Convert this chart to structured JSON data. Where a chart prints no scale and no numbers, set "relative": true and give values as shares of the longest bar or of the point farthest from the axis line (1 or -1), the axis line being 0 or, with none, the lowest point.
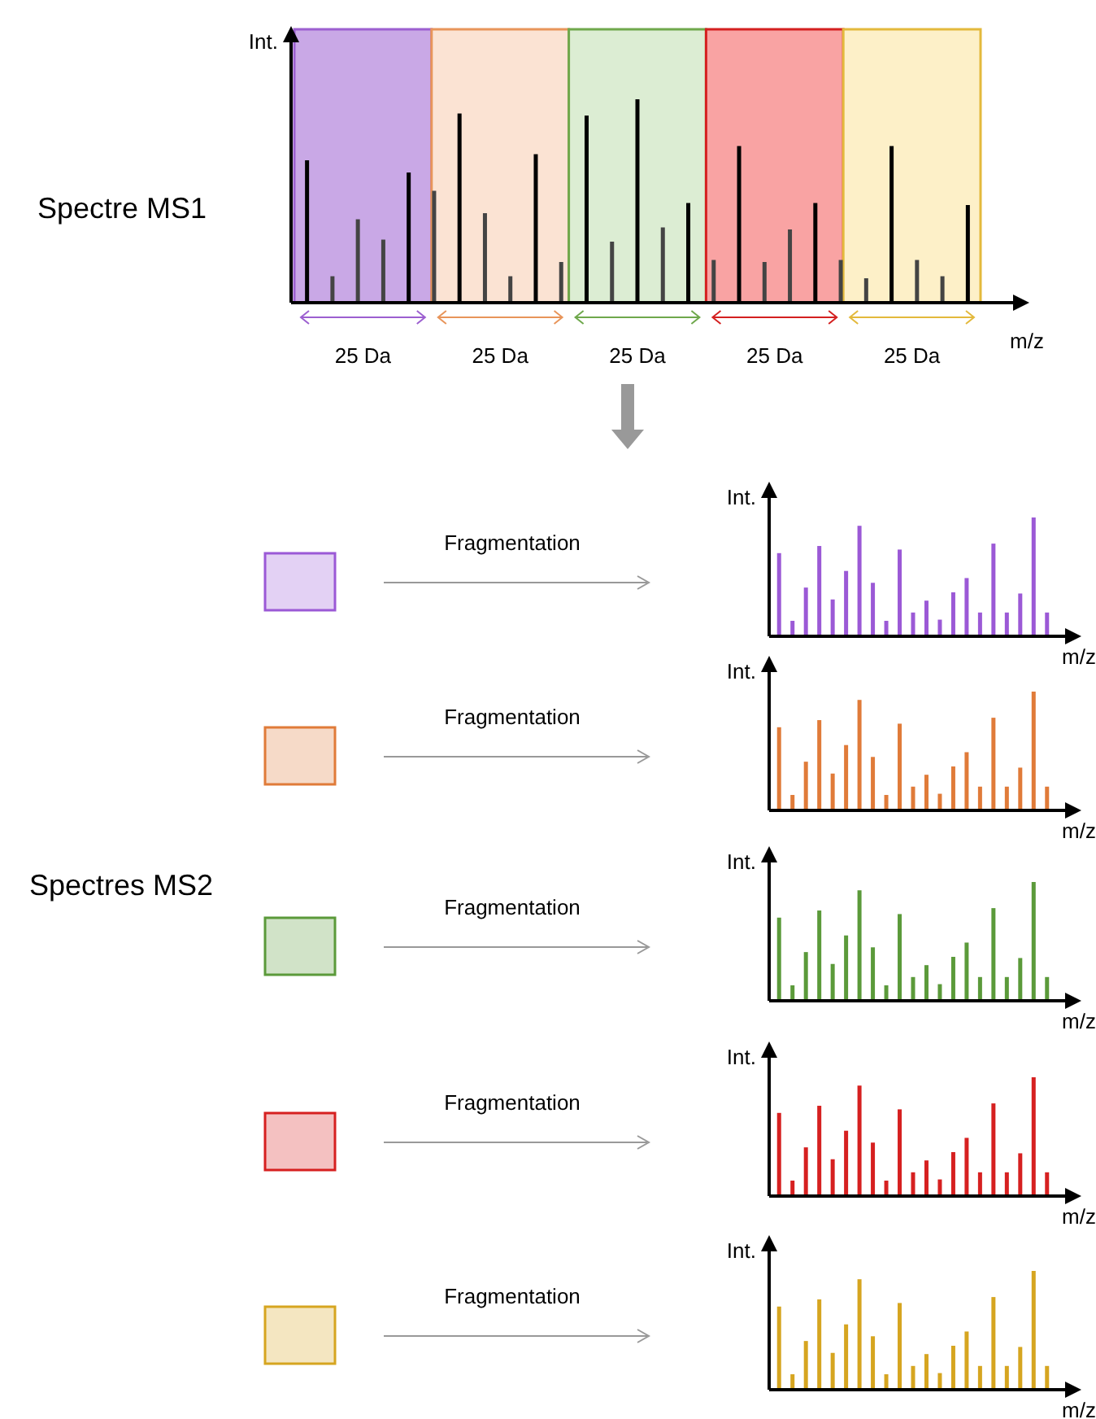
{
  "chart_data": [
    {
      "type": "bar",
      "title": "Spectre MS1",
      "xlabel": "m/z",
      "ylabel": "Int.",
      "relative": true,
      "categories": [
        null,
        null,
        null,
        null,
        null,
        null,
        null,
        null,
        null,
        null,
        null,
        null,
        null,
        null,
        null,
        null,
        null,
        null,
        null,
        null,
        null,
        null,
        null,
        null,
        null,
        null,
        null
      ],
      "values": [
        0.7,
        0.13,
        0.41,
        0.31,
        0.64,
        0.55,
        0.93,
        0.44,
        0.13,
        0.73,
        0.2,
        0.92,
        0.3,
        1,
        0.37,
        0.49,
        0.21,
        0.77,
        0.2,
        0.36,
        0.49,
        0.21,
        0.12,
        0.77,
        0.21,
        0.13,
        0.48
      ],
      "colors": [
        "#000000",
        "#444444",
        "#444444",
        "#444444",
        "#000000",
        "#444444",
        "#000000",
        "#444444",
        "#444444",
        "#000000",
        "#444444",
        "#000000",
        "#444444",
        "#000000",
        "#444444",
        "#000000",
        "#444444",
        "#000000",
        "#444444",
        "#444444",
        "#000000",
        "#444444",
        "#444444",
        "#000000",
        "#444444",
        "#444444",
        "#000000"
      ],
      "annotations": [
        "25 Da",
        "25 Da",
        "25 Da",
        "25 Da",
        "25 Da"
      ]
    },
    {
      "type": "bar",
      "xlabel": "m/z",
      "ylabel": "Int.",
      "relative": true,
      "annotations": [
        "Fragmentation"
      ],
      "categories": [
        null,
        null,
        null,
        null,
        null,
        null,
        null,
        null,
        null,
        null,
        null,
        null,
        null,
        null,
        null,
        null,
        null,
        null,
        null,
        null,
        null
      ],
      "series": [
        {
          "color": "#9b59d6",
          "values": [
            0.7,
            0.13,
            0.41,
            0.76,
            0.31,
            0.55,
            0.93,
            0.45,
            0.13,
            0.73,
            0.2,
            0.3,
            0.14,
            0.37,
            0.49,
            0.2,
            0.78,
            0.2,
            0.36,
            1,
            0.2
          ]
        }
      ]
    },
    {
      "type": "bar",
      "xlabel": "m/z",
      "ylabel": "Int.",
      "relative": true,
      "annotations": [
        "Fragmentation"
      ],
      "categories": [
        null,
        null,
        null,
        null,
        null,
        null,
        null,
        null,
        null,
        null,
        null,
        null,
        null,
        null,
        null,
        null,
        null,
        null,
        null,
        null,
        null
      ],
      "series": [
        {
          "color": "#e07b39",
          "values": [
            0.7,
            0.13,
            0.41,
            0.76,
            0.31,
            0.55,
            0.93,
            0.45,
            0.13,
            0.73,
            0.2,
            0.3,
            0.14,
            0.37,
            0.49,
            0.2,
            0.78,
            0.2,
            0.36,
            1,
            0.2
          ]
        }
      ]
    },
    {
      "type": "bar",
      "xlabel": "m/z",
      "ylabel": "Int.",
      "relative": true,
      "annotations": [
        "Fragmentation",
        "Spectres MS2"
      ],
      "categories": [
        null,
        null,
        null,
        null,
        null,
        null,
        null,
        null,
        null,
        null,
        null,
        null,
        null,
        null,
        null,
        null,
        null,
        null,
        null,
        null,
        null
      ],
      "series": [
        {
          "color": "#5b9a3a",
          "values": [
            0.7,
            0.13,
            0.41,
            0.76,
            0.31,
            0.55,
            0.93,
            0.45,
            0.13,
            0.73,
            0.2,
            0.3,
            0.14,
            0.37,
            0.49,
            0.2,
            0.78,
            0.2,
            0.36,
            1,
            0.2
          ]
        }
      ]
    },
    {
      "type": "bar",
      "xlabel": "m/z",
      "ylabel": "Int.",
      "relative": true,
      "annotations": [
        "Fragmentation"
      ],
      "categories": [
        null,
        null,
        null,
        null,
        null,
        null,
        null,
        null,
        null,
        null,
        null,
        null,
        null,
        null,
        null,
        null,
        null,
        null,
        null,
        null,
        null
      ],
      "series": [
        {
          "color": "#d62020",
          "values": [
            0.7,
            0.13,
            0.41,
            0.76,
            0.31,
            0.55,
            0.93,
            0.45,
            0.13,
            0.73,
            0.2,
            0.3,
            0.14,
            0.37,
            0.49,
            0.2,
            0.78,
            0.2,
            0.36,
            1,
            0.2
          ]
        }
      ]
    },
    {
      "type": "bar",
      "xlabel": "m/z",
      "ylabel": "Int.",
      "relative": true,
      "annotations": [
        "Fragmentation"
      ],
      "categories": [
        null,
        null,
        null,
        null,
        null,
        null,
        null,
        null,
        null,
        null,
        null,
        null,
        null,
        null,
        null,
        null,
        null,
        null,
        null,
        null,
        null
      ],
      "series": [
        {
          "color": "#d6a520",
          "values": [
            0.7,
            0.13,
            0.41,
            0.76,
            0.31,
            0.55,
            0.93,
            0.45,
            0.13,
            0.73,
            0.2,
            0.3,
            0.14,
            0.37,
            0.49,
            0.2,
            0.78,
            0.2,
            0.36,
            1,
            0.2
          ]
        }
      ]
    }
  ]
}
